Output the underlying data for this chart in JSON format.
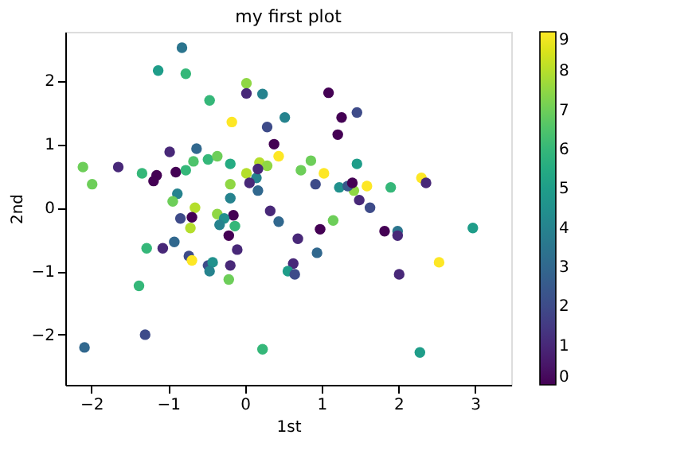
{
  "chart_data": {
    "type": "scatter",
    "title": "my first plot",
    "xlabel": "1st",
    "ylabel": "2nd",
    "xlim": [
      -2.34,
      3.47
    ],
    "ylim": [
      -2.79,
      2.77
    ],
    "xticks": [
      -2,
      -1,
      0,
      1,
      2,
      3
    ],
    "yticks": [
      -2,
      -1,
      0,
      1,
      2
    ],
    "clim": [
      0,
      9
    ],
    "cticks": [
      0,
      1,
      2,
      3,
      4,
      5,
      6,
      7,
      8,
      9
    ],
    "marker": "circle",
    "x": [
      -0.82,
      -1.13,
      -0.77,
      0.02,
      0.02,
      0.23,
      -0.46,
      -0.17,
      0.29,
      0.52,
      0.38,
      0.44,
      -0.98,
      -0.63,
      -2.11,
      -1.99,
      -1.65,
      -1.34,
      -1.15,
      -1.19,
      -0.9,
      -0.77,
      -0.67,
      -0.48,
      -0.36,
      -0.19,
      0.02,
      0.19,
      0.29,
      0.15,
      0.17,
      0.06,
      0.17,
      -0.19,
      -0.88,
      -0.94,
      -0.65,
      -0.19,
      -0.84,
      -0.69,
      -0.71,
      -0.36,
      -0.15,
      -0.27,
      -0.33,
      -0.13,
      0.33,
      0.44,
      -1.28,
      -1.07,
      -0.92,
      -0.21,
      -0.1,
      -0.73,
      -0.69,
      -0.48,
      -0.42,
      -0.46,
      -0.19,
      -0.21,
      -1.38,
      -1.3,
      -2.09,
      0.23,
      0.63,
      0.56,
      0.65,
      1.42,
      1.49,
      1.63,
      1.15,
      0.98,
      0.69,
      0.94,
      1.82,
      1.99,
      1.99,
      2.53,
      2.01,
      2.97,
      2.28,
      1.09,
      1.46,
      1.26,
      1.21,
      0.86,
      0.73,
      1.03,
      1.46,
      0.92,
      1.23,
      1.34,
      1.4,
      1.59,
      1.9,
      2.3,
      2.36
    ],
    "values": [
      2.52,
      2.16,
      2.11,
      1.96,
      1.8,
      1.79,
      1.69,
      1.35,
      1.27,
      1.42,
      1.0,
      0.81,
      0.88,
      0.93,
      0.64,
      0.37,
      0.64,
      0.54,
      0.51,
      0.42,
      0.56,
      0.59,
      0.73,
      0.76,
      0.81,
      0.69,
      0.54,
      0.71,
      0.66,
      0.47,
      0.61,
      0.39,
      0.27,
      0.37,
      0.22,
      0.1,
      0.0,
      0.15,
      -0.17,
      -0.15,
      -0.32,
      -0.1,
      -0.12,
      -0.17,
      -0.27,
      -0.29,
      -0.05,
      -0.22,
      -0.64,
      -0.64,
      -0.54,
      -0.44,
      -0.66,
      -0.76,
      -0.83,
      -0.91,
      -0.86,
      -1.0,
      -0.91,
      -1.13,
      -1.23,
      -2.0,
      -2.2,
      -2.23,
      -0.88,
      -1.0,
      -1.05,
      0.27,
      0.12,
      0.0,
      -0.2,
      -0.34,
      -0.49,
      -0.71,
      -0.37,
      -0.37,
      -0.44,
      -0.86,
      -1.05,
      -0.32,
      -2.28,
      1.81,
      1.5,
      1.42,
      1.15,
      0.74,
      0.59,
      0.54,
      0.69,
      0.37,
      0.32,
      0.34,
      0.39,
      0.34,
      0.32,
      0.47,
      0.39
    ],
    "cvalues": [
      3.5,
      5,
      6,
      7.5,
      1,
      4,
      6,
      9,
      2,
      4,
      0,
      9,
      1,
      3,
      7,
      7,
      1,
      6,
      0,
      0,
      0,
      6,
      6.5,
      6,
      7,
      5.5,
      8,
      8,
      7.5,
      4,
      1,
      1,
      3,
      7.5,
      4,
      7,
      8,
      4,
      2,
      0,
      8,
      7.5,
      0,
      4.5,
      4,
      6,
      1,
      3,
      6,
      1,
      3,
      0,
      1,
      2,
      9,
      2,
      4.5,
      4,
      1,
      7,
      6,
      2,
      3,
      6,
      1,
      5,
      2,
      7.5,
      1,
      2,
      7,
      0,
      1,
      3,
      0,
      3.5,
      1,
      9,
      1,
      5,
      5,
      0,
      2,
      0,
      0,
      7,
      7,
      9,
      5,
      2,
      4.5,
      2.5,
      0,
      9,
      6,
      9,
      1
    ]
  }
}
